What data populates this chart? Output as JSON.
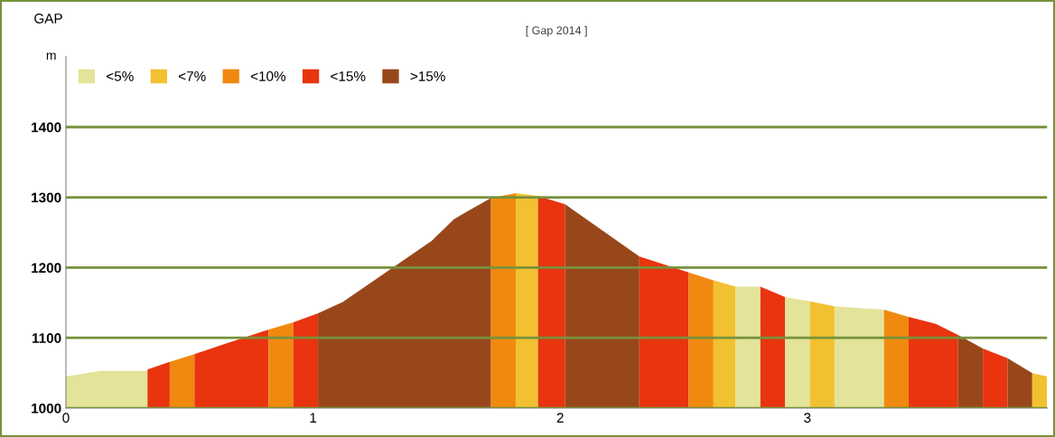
{
  "chart_data": {
    "type": "area",
    "title": "[ Gap 2014 ]",
    "ylabel": "m",
    "annotations": [
      "GAP"
    ],
    "xlim": [
      0,
      3.97
    ],
    "ylim": [
      1000,
      1500
    ],
    "xticks": [
      0,
      1,
      2,
      3
    ],
    "yticks": [
      1000,
      1100,
      1200,
      1300,
      1400
    ],
    "grid": "y",
    "legend": "top left",
    "series": [
      {
        "name": "<5%",
        "color": "#e3e39a",
        "x": [
          0,
          0.14,
          0.33
        ],
        "values": [
          1045,
          1053,
          1053
        ]
      },
      {
        "color": "#e8340f",
        "x": [
          0.33,
          0.42
        ],
        "values": [
          1055,
          1066
        ]
      },
      {
        "name": "<10%",
        "color": "#f0890f",
        "x": [
          0.42,
          0.52
        ],
        "values": [
          1066,
          1077
        ]
      },
      {
        "name": "<15%",
        "color": "#e8340f",
        "x": [
          0.52,
          0.82
        ],
        "values": [
          1077,
          1112
        ]
      },
      {
        "color": "#f0890f",
        "x": [
          0.82,
          0.92
        ],
        "values": [
          1112,
          1122
        ]
      },
      {
        "color": "#e8340f",
        "x": [
          0.92,
          1.02
        ],
        "values": [
          1122,
          1135
        ]
      },
      {
        "name": ">15%",
        "color": "#98471b",
        "x": [
          1.02,
          1.12,
          1.48,
          1.57,
          1.72
        ],
        "values": [
          1135,
          1151,
          1238,
          1269,
          1299
        ]
      },
      {
        "color": "#f0890f",
        "x": [
          1.72,
          1.82
        ],
        "values": [
          1299,
          1306
        ]
      },
      {
        "name": "<7%",
        "color": "#f2c131",
        "x": [
          1.82,
          1.91
        ],
        "values": [
          1306,
          1302
        ]
      },
      {
        "color": "#e8340f",
        "x": [
          1.91,
          2.02
        ],
        "values": [
          1302,
          1290
        ]
      },
      {
        "color": "#98471b",
        "x": [
          2.02,
          2.32
        ],
        "values": [
          1290,
          1216
        ]
      },
      {
        "color": "#e8340f",
        "x": [
          2.32,
          2.52
        ],
        "values": [
          1216,
          1193
        ]
      },
      {
        "color": "#f0890f",
        "x": [
          2.52,
          2.62
        ],
        "values": [
          1193,
          1182
        ]
      },
      {
        "color": "#f2c131",
        "x": [
          2.62,
          2.71
        ],
        "values": [
          1182,
          1173
        ]
      },
      {
        "color": "#e3e39a",
        "x": [
          2.71,
          2.81
        ],
        "values": [
          1173,
          1173
        ]
      },
      {
        "color": "#e8340f",
        "x": [
          2.81,
          2.91
        ],
        "values": [
          1173,
          1158
        ]
      },
      {
        "color": "#e3e39a",
        "x": [
          2.91,
          3.01
        ],
        "values": [
          1158,
          1152
        ]
      },
      {
        "color": "#f2c131",
        "x": [
          3.01,
          3.11
        ],
        "values": [
          1152,
          1145
        ]
      },
      {
        "color": "#e3e39a",
        "x": [
          3.11,
          3.31
        ],
        "values": [
          1145,
          1140
        ]
      },
      {
        "color": "#f0890f",
        "x": [
          3.31,
          3.41
        ],
        "values": [
          1140,
          1130
        ]
      },
      {
        "color": "#e8340f",
        "x": [
          3.41,
          3.52,
          3.61
        ],
        "values": [
          1130,
          1120,
          1104
        ]
      },
      {
        "color": "#98471b",
        "x": [
          3.61,
          3.71
        ],
        "values": [
          1104,
          1085
        ]
      },
      {
        "color": "#e8340f",
        "x": [
          3.71,
          3.81
        ],
        "values": [
          1085,
          1071
        ]
      },
      {
        "color": "#98471b",
        "x": [
          3.81,
          3.91
        ],
        "values": [
          1071,
          1050
        ]
      },
      {
        "color": "#f2c131",
        "x": [
          3.91,
          3.97
        ],
        "values": [
          1050,
          1045
        ]
      }
    ]
  }
}
